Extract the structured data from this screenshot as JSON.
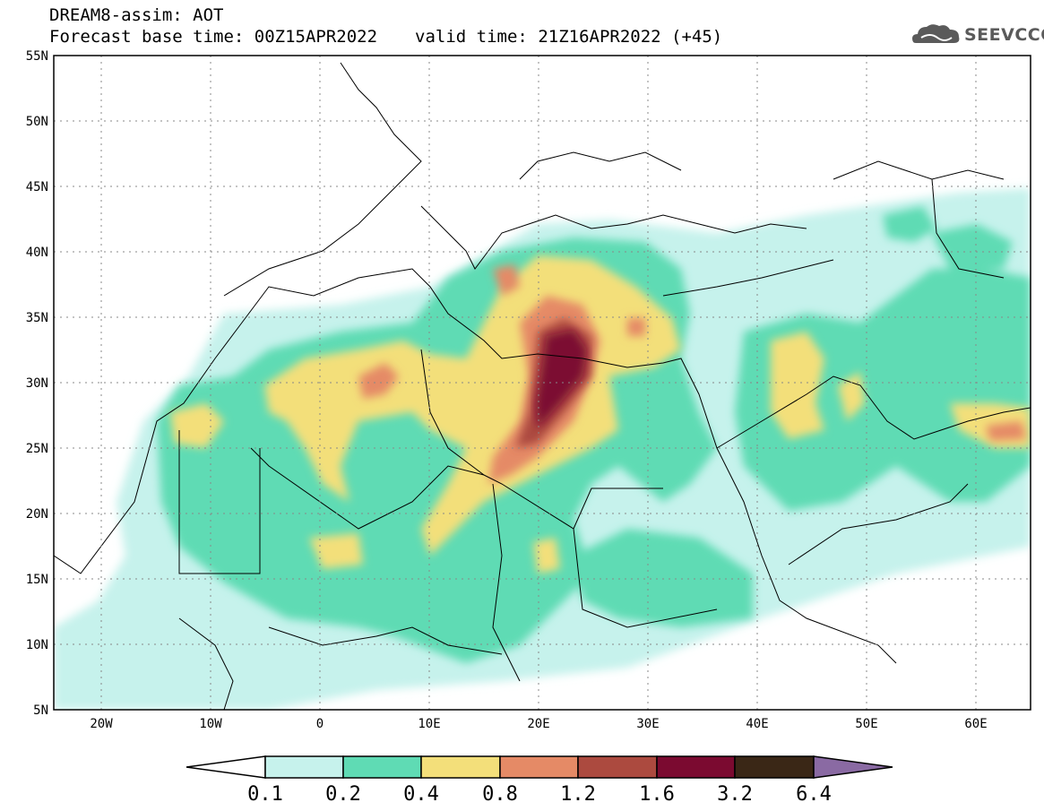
{
  "header": {
    "title": "DREAM8-assim: AOT",
    "base_time": "Forecast base time: 00Z15APR2022",
    "valid_time": "valid time: 21Z16APR2022 (+45)"
  },
  "logo": {
    "text": "SEEVCCC",
    "icon": "cloud-icon"
  },
  "map": {
    "lon_range": [
      -25,
      65
    ],
    "lat_range": [
      5,
      55
    ],
    "lat_ticks": [
      "55N",
      "50N",
      "45N",
      "40N",
      "35N",
      "30N",
      "25N",
      "20N",
      "15N",
      "10N",
      "5N"
    ],
    "lon_ticks": [
      "20W",
      "10W",
      "0",
      "10E",
      "20E",
      "30E",
      "40E",
      "50E",
      "60E"
    ],
    "grid": "dotted"
  },
  "colorbar": {
    "labels": [
      "0.1",
      "0.2",
      "0.4",
      "0.8",
      "1.2",
      "1.6",
      "3.2",
      "6.4"
    ],
    "colors": [
      "#ffffff",
      "#c6f2ec",
      "#5fdbb4",
      "#f3df7a",
      "#e58a66",
      "#ac4a3f",
      "#7b0a30",
      "#3a2716",
      "#8a6aa3"
    ]
  }
}
